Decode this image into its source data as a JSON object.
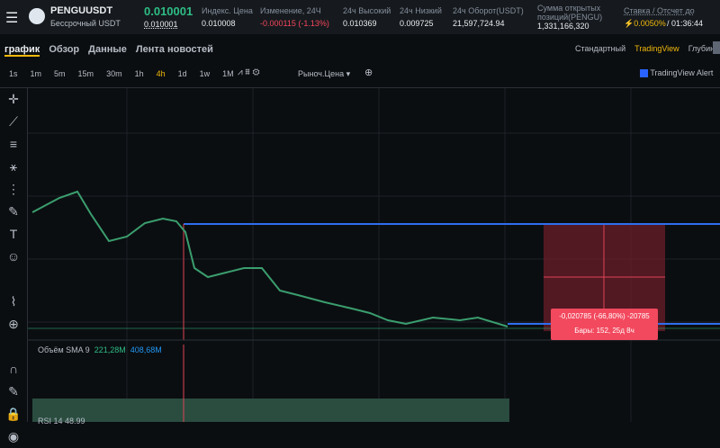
{
  "header": {
    "symbol": "PENGUUSDT",
    "subtitle": "Бессрочный USDT",
    "price": "0.010001",
    "mark_price": "0.010001",
    "stats": [
      {
        "label": "Индекс. Цена",
        "value": "0.010008"
      },
      {
        "label": "Изменение, 24Ч",
        "value": "-0.000115 (-1.13%)"
      },
      {
        "label": "24ч Высокий",
        "value": "0.010369"
      },
      {
        "label": "24ч Низкий",
        "value": "0.009725"
      },
      {
        "label": "24ч Оборот(USDT)",
        "value": "21,597,724.94"
      }
    ],
    "open_interest": {
      "label": "Сумма открытых позиций(PENGU)",
      "value": "1,331,166,320"
    },
    "funding": {
      "label": "Ставка / Отсчет до",
      "rate": "0.0050%",
      "countdown": "/ 01:36:44"
    }
  },
  "tabs": [
    "график",
    "Обзор",
    "Данные",
    "Лента новостей"
  ],
  "views": [
    "Стандартный",
    "TradingView",
    "Глубина"
  ],
  "toolbar": {
    "intervals": [
      "1s",
      "1m",
      "5m",
      "15m",
      "30m",
      "1h",
      "4h",
      "1d",
      "1w",
      "1M"
    ],
    "price_type": "Рыноч.Цена",
    "alert": "TradingView Alert"
  },
  "measure": {
    "change": "-0,020785 (-66,80%) -20785",
    "bars": "Бары: 152, 25д 8ч"
  },
  "volume": {
    "label": "Объём SMA 9",
    "value1": "221,28M",
    "value2": "408,68M"
  },
  "rsi": {
    "label": "RSI 14 48.99"
  }
}
